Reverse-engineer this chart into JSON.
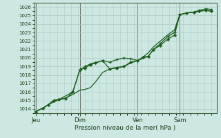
{
  "bg_color": "#cde8e2",
  "plot_bg_color": "#cde8e2",
  "grid_color": "#b0c8c4",
  "line_color": "#1a5c1a",
  "marker_color": "#1a5c1a",
  "xlabel": "Pression niveau de la mer( hPa )",
  "ylim": [
    1013.5,
    1026.5
  ],
  "yticks": [
    1014,
    1015,
    1016,
    1017,
    1018,
    1019,
    1020,
    1021,
    1022,
    1023,
    1024,
    1025,
    1026
  ],
  "day_labels": [
    "Jeu",
    "Dim",
    "Ven",
    "Sam"
  ],
  "day_positions": [
    0.0,
    0.25,
    0.58,
    0.82
  ],
  "vline_positions": [
    0.0,
    0.25,
    0.58,
    0.82
  ],
  "series1_x": [
    0.0,
    0.04,
    0.07,
    0.1,
    0.13,
    0.17,
    0.21,
    0.25,
    0.28,
    0.31,
    0.34,
    0.38,
    0.42,
    0.46,
    0.5,
    0.54,
    0.58,
    0.61,
    0.64,
    0.67,
    0.71,
    0.75,
    0.79,
    0.82,
    0.86,
    0.9,
    0.93,
    0.97,
    1.0
  ],
  "series1_y": [
    1013.7,
    1014.1,
    1014.5,
    1015.0,
    1015.1,
    1015.2,
    1016.0,
    1018.6,
    1018.8,
    1019.2,
    1019.4,
    1019.7,
    1018.7,
    1018.8,
    1019.0,
    1019.5,
    1019.7,
    1020.1,
    1020.2,
    1021.0,
    1021.5,
    1022.2,
    1022.7,
    1025.1,
    1025.3,
    1025.4,
    1025.5,
    1025.6,
    1025.5
  ],
  "series2_x": [
    0.0,
    0.04,
    0.07,
    0.13,
    0.17,
    0.21,
    0.25,
    0.28,
    0.31,
    0.34,
    0.38,
    0.42,
    0.46,
    0.5,
    0.54,
    0.58,
    0.61,
    0.64,
    0.67,
    0.71,
    0.75,
    0.79,
    0.82,
    0.86,
    0.9,
    0.93,
    0.97,
    1.0
  ],
  "series2_y": [
    1013.7,
    1014.1,
    1014.5,
    1015.1,
    1015.3,
    1015.7,
    1016.2,
    1016.3,
    1016.5,
    1017.2,
    1018.3,
    1018.7,
    1018.9,
    1019.0,
    1019.4,
    1019.7,
    1020.1,
    1020.6,
    1021.3,
    1022.0,
    1022.7,
    1023.3,
    1025.1,
    1025.3,
    1025.4,
    1025.5,
    1025.6,
    1025.5
  ],
  "series3_x": [
    0.0,
    0.04,
    0.07,
    0.1,
    0.13,
    0.21,
    0.25,
    0.28,
    0.31,
    0.38,
    0.42,
    0.46,
    0.5,
    0.54,
    0.58,
    0.64,
    0.67,
    0.71,
    0.75,
    0.79,
    0.82,
    0.86,
    0.9,
    0.93,
    0.97,
    1.0
  ],
  "series3_y": [
    1013.7,
    1014.1,
    1014.5,
    1015.0,
    1015.1,
    1016.0,
    1018.6,
    1019.0,
    1019.3,
    1019.7,
    1019.5,
    1019.8,
    1020.0,
    1019.9,
    1019.7,
    1020.2,
    1021.0,
    1021.7,
    1022.5,
    1023.0,
    1025.1,
    1025.3,
    1025.4,
    1025.6,
    1025.8,
    1025.7
  ],
  "xlim": [
    -0.01,
    1.03
  ]
}
